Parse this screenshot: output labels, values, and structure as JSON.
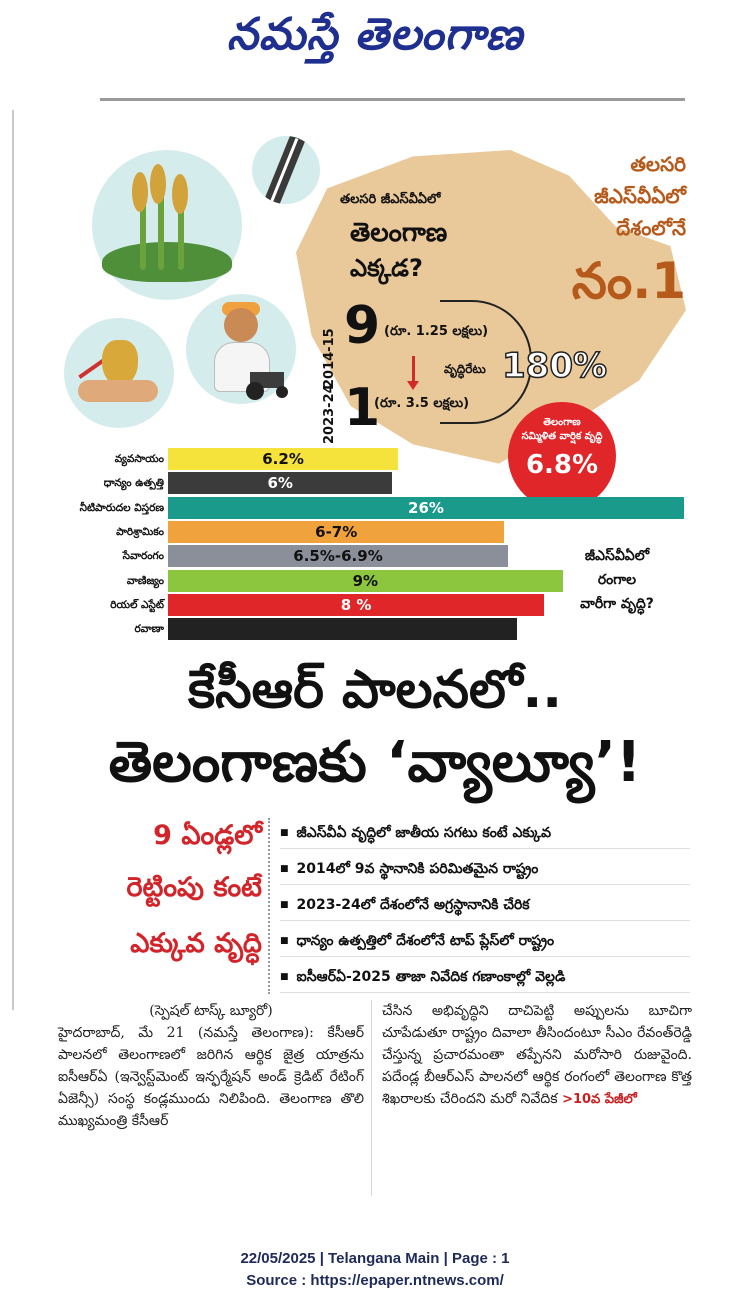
{
  "masthead": {
    "title": "నమస్తే తెలంగాణ"
  },
  "infographic": {
    "question_small": "తలసరి జీఎస్‌వీఏలో",
    "question_big1": "తెలంగాణ",
    "question_big2": "ఎక్కడ?",
    "rank_year_a": "2014-15",
    "rank_a": "9",
    "rank_a_value": "(రూ. 1.25 లక్షలు)",
    "rank_year_b": "2023-24",
    "rank_b": "1",
    "rank_b_value": "(రూ. 3.5 లక్షలు)",
    "growth_label": "వృద్ధిరేటు",
    "growth_pct": "180%",
    "no1_line1": "తలసరి",
    "no1_line2": "జీఎస్‌వీఏలో",
    "no1_line3": "దేశంలోనే",
    "no1_big": "నం.1",
    "cagr_line1": "తెలంగాణ",
    "cagr_line2": "సమ్మిళిత వార్షిక వృద్ధి",
    "cagr_value": "6.8%",
    "sector_question_l1": "జీఎస్‌వీఏలో",
    "sector_question_l2": "రంగాల",
    "sector_question_l3": "వారీగా వృద్ధి?",
    "colors": {
      "map": "#e9c89a",
      "accent": "#b65a1b",
      "cagr": "#e1262a"
    }
  },
  "chart_data": {
    "type": "bar",
    "orientation": "horizontal",
    "categories": [
      "వ్యవసాయం",
      "ధాన్యం ఉత్పత్తి",
      "నీటిపారుదల విస్తరణ",
      "పారిశ్రామికం",
      "సేవారంగం",
      "వాణిజ్యం",
      "రియల్ ఎస్టేట్",
      "రవాణా"
    ],
    "series": [
      {
        "values": [
          6.2,
          6,
          26,
          7,
          6.9,
          9,
          8,
          null
        ],
        "labels": [
          "6.2%",
          "6%",
          "26%",
          "6-7%",
          "6.5%-6.9%",
          "9%",
          "8 %",
          ""
        ],
        "colors": [
          "#f5e23a",
          "#3b3b3b",
          "#1a9a8a",
          "#f0a23c",
          "#8a8f9a",
          "#8cc63f",
          "#e1262a",
          "#222222"
        ],
        "label_colors": [
          "#111111",
          "#ffffff",
          "#ffffff",
          "#111111",
          "#111111",
          "#111111",
          "#ffffff",
          "#ffffff"
        ],
        "bar_fraction": [
          0.446,
          0.435,
          1.0,
          0.652,
          0.659,
          0.765,
          0.729,
          0.676
        ]
      }
    ],
    "title": "",
    "xlabel": "",
    "ylabel": ""
  },
  "headline": {
    "line1": "కేసీఆర్ పాలనలో..",
    "line2": "తెలంగాణకు ‘వ్యాల్యూ’!"
  },
  "sidebar": {
    "line1": "9 ఏండ్లలో",
    "line2": "రెట్టింపు కంటే",
    "line3": "ఎక్కువ వృద్ధి"
  },
  "bullets": [
    "జీఎస్‌వీఏ వృద్ధిలో జాతీయ సగటు కంటే ఎక్కువ",
    "2014లో 9వ స్థానానికి పరిమితమైన రాష్ట్రం",
    "2023-24లో దేశంలోనే అగ్రస్థానానికి చేరిక",
    "ధాన్యం ఉత్పత్తిలో దేశంలోనే టాప్ ప్లేస్‌లో రాష్ట్రం",
    "ఐసీఆర్ఏ-2025 తాజా నివేదిక గణాంకాల్లో వెల్లడి"
  ],
  "article": {
    "byline": "(స్పెషల్ టాస్క్ బ్యూరో)",
    "col1": "హైదరాబాద్, మే 21 (నమస్తే తెలంగాణ): కేసీఆర్ పాలనలో తెలంగాణలో జరిగిన ఆర్థిక జైత్ర యాత్రను ఐసీఆర్ఏ (ఇన్వెస్ట్‌మెంట్ ఇన్ఫర్మేషన్ అండ్ క్రెడిట్ రేటింగ్ ఏజెన్సీ) సంస్థ కండ్లముందు నిలిపింది. తెలంగాణ తొలి ముఖ్యమంత్రి కేసీఆర్",
    "col2": "చేసిన అభివృద్ధిని దాచిపెట్టి అప్పులను బూచిగా చూపేడుతూ రాష్ట్రం దివాలా తీసిందంటూ సీఎం రేవంత్‌రెడ్డి చేస్తున్న ప్రచారమంతా తప్పేనని మరోసారి రుజువైంది. పదేండ్ల బీఆర్‌ఎస్ పాలనలో ఆర్థిక రంగంలో తెలంగాణ కొత్త శిఖరాలకు చేరిందని మరో నివేదిక",
    "jump": ">10వ పేజీలో"
  },
  "footer": {
    "line1": "22/05/2025 | Telangana Main | Page : 1",
    "line2": "Source : https://epaper.ntnews.com/"
  }
}
